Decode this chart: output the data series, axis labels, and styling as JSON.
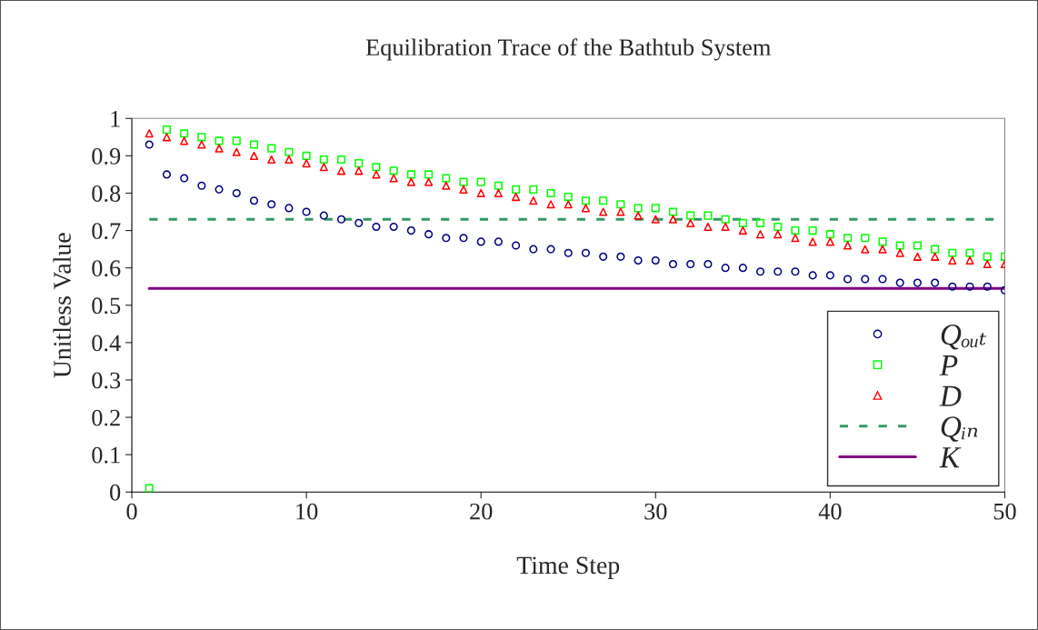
{
  "chart_data": {
    "type": "scatter",
    "title": "Equilibration Trace of the Bathtub System",
    "xlabel": "Time Step",
    "ylabel": "Unitless Value",
    "x": [
      1,
      2,
      3,
      4,
      5,
      6,
      7,
      8,
      9,
      10,
      11,
      12,
      13,
      14,
      15,
      16,
      17,
      18,
      19,
      20,
      21,
      22,
      23,
      24,
      25,
      26,
      27,
      28,
      29,
      30,
      31,
      32,
      33,
      34,
      35,
      36,
      37,
      38,
      39,
      40,
      41,
      42,
      43,
      44,
      45,
      46,
      47,
      48,
      49,
      50
    ],
    "series": [
      {
        "name": "Qₒᵤₜ",
        "color": "#000080",
        "marker": "circle",
        "values": [
          0.93,
          0.85,
          0.84,
          0.82,
          0.81,
          0.8,
          0.78,
          0.77,
          0.76,
          0.75,
          0.74,
          0.73,
          0.72,
          0.71,
          0.71,
          0.7,
          0.69,
          0.68,
          0.68,
          0.67,
          0.67,
          0.66,
          0.65,
          0.65,
          0.64,
          0.64,
          0.63,
          0.63,
          0.62,
          0.62,
          0.61,
          0.61,
          0.61,
          0.6,
          0.6,
          0.59,
          0.59,
          0.59,
          0.58,
          0.58,
          0.57,
          0.57,
          0.57,
          0.56,
          0.56,
          0.56,
          0.55,
          0.55,
          0.55,
          0.54
        ]
      },
      {
        "name": "P",
        "color": "#00ff00",
        "marker": "square",
        "values": [
          0.01,
          0.97,
          0.96,
          0.95,
          0.94,
          0.94,
          0.93,
          0.92,
          0.91,
          0.9,
          0.89,
          0.89,
          0.88,
          0.87,
          0.86,
          0.85,
          0.85,
          0.84,
          0.83,
          0.83,
          0.82,
          0.81,
          0.81,
          0.8,
          0.79,
          0.78,
          0.78,
          0.77,
          0.76,
          0.76,
          0.75,
          0.74,
          0.74,
          0.73,
          0.72,
          0.72,
          0.71,
          0.7,
          0.7,
          0.69,
          0.68,
          0.68,
          0.67,
          0.66,
          0.66,
          0.65,
          0.64,
          0.64,
          0.63,
          0.63
        ]
      },
      {
        "name": "D",
        "color": "#ff0000",
        "marker": "triangle",
        "values": [
          0.96,
          0.95,
          0.94,
          0.93,
          0.92,
          0.91,
          0.9,
          0.89,
          0.89,
          0.88,
          0.87,
          0.86,
          0.86,
          0.85,
          0.84,
          0.83,
          0.83,
          0.82,
          0.81,
          0.8,
          0.8,
          0.79,
          0.78,
          0.77,
          0.77,
          0.76,
          0.75,
          0.75,
          0.74,
          0.73,
          0.73,
          0.72,
          0.71,
          0.71,
          0.7,
          0.69,
          0.69,
          0.68,
          0.67,
          0.67,
          0.66,
          0.65,
          0.65,
          0.64,
          0.63,
          0.63,
          0.62,
          0.62,
          0.61,
          0.61
        ]
      },
      {
        "name": "Qᵢₙ",
        "type": "line",
        "line_style": "dashed",
        "color": "#339966",
        "values": [
          0.73,
          0.73,
          0.73,
          0.73,
          0.73,
          0.73,
          0.73,
          0.73,
          0.73,
          0.73,
          0.73,
          0.73,
          0.73,
          0.73,
          0.73,
          0.73,
          0.73,
          0.73,
          0.73,
          0.73,
          0.73,
          0.73,
          0.73,
          0.73,
          0.73,
          0.73,
          0.73,
          0.73,
          0.73,
          0.73,
          0.73,
          0.73,
          0.73,
          0.73,
          0.73,
          0.73,
          0.73,
          0.73,
          0.73,
          0.73,
          0.73,
          0.73,
          0.73,
          0.73,
          0.73,
          0.73,
          0.73,
          0.73,
          0.73,
          0.73
        ]
      },
      {
        "name": "K",
        "type": "line",
        "line_style": "solid",
        "color": "#800080",
        "values": [
          0.545,
          0.545,
          0.545,
          0.545,
          0.545,
          0.545,
          0.545,
          0.545,
          0.545,
          0.545,
          0.545,
          0.545,
          0.545,
          0.545,
          0.545,
          0.545,
          0.545,
          0.545,
          0.545,
          0.545,
          0.545,
          0.545,
          0.545,
          0.545,
          0.545,
          0.545,
          0.545,
          0.545,
          0.545,
          0.545,
          0.545,
          0.545,
          0.545,
          0.545,
          0.545,
          0.545,
          0.545,
          0.545,
          0.545,
          0.545,
          0.545,
          0.545,
          0.545,
          0.545,
          0.545,
          0.545,
          0.545,
          0.545,
          0.545,
          0.545
        ]
      }
    ],
    "xlim": [
      0,
      50
    ],
    "xticks": [
      0,
      10,
      20,
      30,
      40,
      50
    ],
    "ylim": [
      0,
      1
    ],
    "yticks": [
      0,
      0.1,
      0.2,
      0.3,
      0.4,
      0.5,
      0.6,
      0.7,
      0.8,
      0.9,
      1
    ],
    "grid": false,
    "legend": "bottom right"
  }
}
